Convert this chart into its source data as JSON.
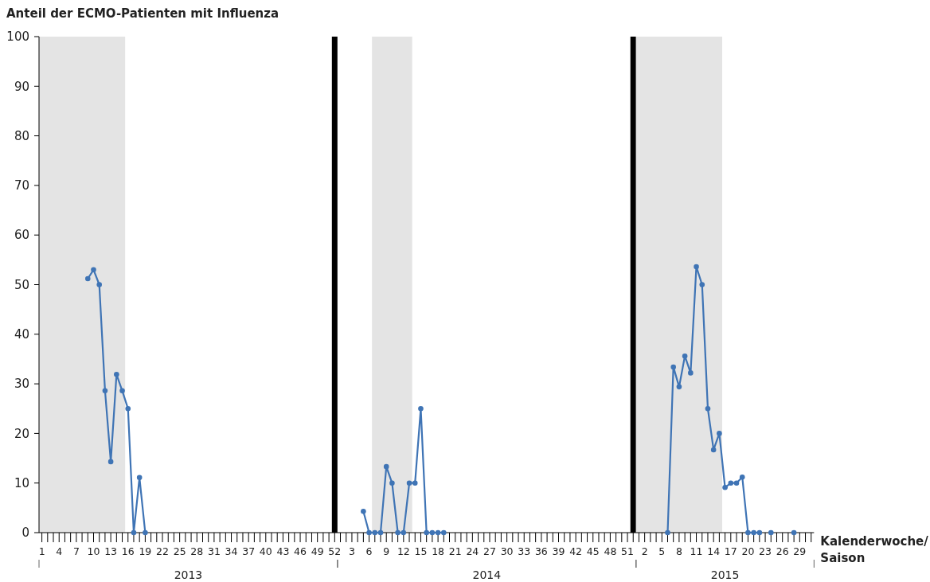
{
  "chart_data": [
    {
      "type": "line",
      "ylabel": "Anteil der ECMO-Patienten mit Influenza",
      "xlabel": "2013",
      "xlim": [
        0.5,
        52.5
      ],
      "ylim": [
        0,
        100
      ],
      "yticks": [
        0,
        10,
        20,
        30,
        40,
        50,
        60,
        70,
        80,
        90,
        100
      ],
      "xticks": [
        1,
        {
          "value": 2,
          "label": null
        },
        {
          "value": 3,
          "label": null
        },
        4,
        {
          "value": 5,
          "label": null
        },
        {
          "value": 6,
          "label": null
        },
        7,
        {
          "value": 8,
          "label": null
        },
        {
          "value": 9,
          "label": null
        },
        10,
        {
          "value": 11,
          "label": null
        },
        {
          "value": 12,
          "label": null
        },
        13,
        {
          "value": 14,
          "label": null
        },
        {
          "value": 15,
          "label": null
        },
        16,
        {
          "value": 17,
          "label": null
        },
        {
          "value": 18,
          "label": null
        },
        19,
        {
          "value": 20,
          "label": null
        },
        {
          "value": 21,
          "label": null
        },
        22,
        {
          "value": 23,
          "label": null
        },
        {
          "value": 24,
          "label": null
        },
        25,
        {
          "value": 26,
          "label": null
        },
        {
          "value": 27,
          "label": null
        },
        28,
        {
          "value": 29,
          "label": null
        },
        {
          "value": 30,
          "label": null
        },
        31,
        {
          "value": 32,
          "label": null
        },
        {
          "value": 33,
          "label": null
        },
        34,
        {
          "value": 35,
          "label": null
        },
        {
          "value": 36,
          "label": null
        },
        37,
        {
          "value": 38,
          "label": null
        },
        {
          "value": 39,
          "label": null
        },
        40,
        {
          "value": 41,
          "label": null
        },
        {
          "value": 42,
          "label": null
        },
        43,
        {
          "value": 44,
          "label": null
        },
        {
          "value": 45,
          "label": null
        },
        46,
        {
          "value": 47,
          "label": null
        },
        {
          "value": 48,
          "label": null
        },
        49,
        {
          "value": 50,
          "label": null
        },
        {
          "value": 51,
          "label": null
        },
        52
      ],
      "series": [
        {
          "color": "#3f74b5",
          "x": [
            9,
            10,
            11,
            12,
            13,
            14,
            15,
            16,
            17,
            18,
            19
          ],
          "values": [
            51.2,
            53,
            50,
            28.6,
            14.3,
            31.9,
            28.6,
            25,
            0,
            11.1,
            0
          ]
        }
      ],
      "marker": "circle",
      "bands": [
        {
          "axis": "x",
          "from": 0.5,
          "to": 15.5,
          "color": "#e4e4e4"
        }
      ],
      "ref_lines": [
        {
          "axis": "x",
          "value": 52,
          "color": "#000000"
        }
      ]
    },
    {
      "type": "line",
      "xlabel": "2014",
      "xlim": [
        0.5,
        52.5
      ],
      "ylim": [
        0,
        100
      ],
      "tick_labels": "x",
      "xticks": [
        {
          "value": 1,
          "label": null
        },
        {
          "value": 2,
          "label": null
        },
        3,
        {
          "value": 4,
          "label": null
        },
        {
          "value": 5,
          "label": null
        },
        6,
        {
          "value": 7,
          "label": null
        },
        {
          "value": 8,
          "label": null
        },
        9,
        {
          "value": 10,
          "label": null
        },
        {
          "value": 11,
          "label": null
        },
        12,
        {
          "value": 13,
          "label": null
        },
        {
          "value": 14,
          "label": null
        },
        15,
        {
          "value": 16,
          "label": null
        },
        {
          "value": 17,
          "label": null
        },
        18,
        {
          "value": 19,
          "label": null
        },
        {
          "value": 20,
          "label": null
        },
        21,
        {
          "value": 22,
          "label": null
        },
        {
          "value": 23,
          "label": null
        },
        24,
        {
          "value": 25,
          "label": null
        },
        {
          "value": 26,
          "label": null
        },
        27,
        {
          "value": 28,
          "label": null
        },
        {
          "value": 29,
          "label": null
        },
        30,
        {
          "value": 31,
          "label": null
        },
        {
          "value": 32,
          "label": null
        },
        33,
        {
          "value": 34,
          "label": null
        },
        {
          "value": 35,
          "label": null
        },
        36,
        {
          "value": 37,
          "label": null
        },
        {
          "value": 38,
          "label": null
        },
        39,
        {
          "value": 40,
          "label": null
        },
        {
          "value": 41,
          "label": null
        },
        42,
        {
          "value": 43,
          "label": null
        },
        {
          "value": 44,
          "label": null
        },
        45,
        {
          "value": 46,
          "label": null
        },
        {
          "value": 47,
          "label": null
        },
        48,
        {
          "value": 49,
          "label": null
        },
        {
          "value": 50,
          "label": null
        },
        51,
        {
          "value": 52,
          "label": null
        }
      ],
      "series": [
        {
          "color": "#3f74b5",
          "x": [
            5,
            6,
            7,
            8,
            9,
            10,
            11,
            12,
            13,
            14,
            15,
            16,
            17,
            18,
            19
          ],
          "values": [
            4.3,
            0,
            0,
            0,
            13.3,
            10,
            0,
            0,
            10,
            10,
            25,
            0,
            0,
            0,
            0
          ]
        }
      ],
      "marker": "circle",
      "bands": [
        {
          "axis": "x",
          "from": 6.5,
          "to": 13.5,
          "color": "#e4e4e4"
        }
      ],
      "ref_lines": [
        {
          "axis": "x",
          "value": 52,
          "color": "#000000"
        }
      ]
    },
    {
      "type": "line",
      "xlabel": "2015",
      "xlim": [
        0.5,
        31.5
      ],
      "ylim": [
        0,
        100
      ],
      "tick_labels": "x",
      "xticks": [
        {
          "value": 1,
          "label": null
        },
        2,
        {
          "value": 3,
          "label": null
        },
        {
          "value": 4,
          "label": null
        },
        5,
        {
          "value": 6,
          "label": null
        },
        {
          "value": 7,
          "label": null
        },
        8,
        {
          "value": 9,
          "label": null
        },
        {
          "value": 10,
          "label": null
        },
        11,
        {
          "value": 12,
          "label": null
        },
        {
          "value": 13,
          "label": null
        },
        14,
        {
          "value": 15,
          "label": null
        },
        {
          "value": 16,
          "label": null
        },
        17,
        {
          "value": 18,
          "label": null
        },
        {
          "value": 19,
          "label": null
        },
        20,
        {
          "value": 21,
          "label": null
        },
        {
          "value": 22,
          "label": null
        },
        23,
        {
          "value": 24,
          "label": null
        },
        {
          "value": 25,
          "label": null
        },
        26,
        {
          "value": 27,
          "label": null
        },
        {
          "value": 28,
          "label": null
        },
        29,
        {
          "value": 30,
          "label": null
        },
        {
          "value": 31,
          "label": null
        }
      ],
      "series": [
        {
          "color": "#3f74b5",
          "x": [
            6,
            7,
            8,
            9,
            10,
            11,
            12,
            13,
            14,
            15,
            16,
            17,
            18,
            19,
            20,
            21,
            22,
            23,
            24,
            25,
            28
          ],
          "values": [
            0,
            33.4,
            29.4,
            35.6,
            32.2,
            53.6,
            50,
            25,
            16.7,
            20,
            9.1,
            10,
            10,
            11.2,
            0,
            0,
            0,
            null,
            0,
            null,
            0
          ]
        }
      ],
      "marker": "circle",
      "bands": [
        {
          "axis": "x",
          "from": 0.5,
          "to": 15.5,
          "color": "#e4e4e4"
        }
      ],
      "annotations": [
        "Kalenderwoche/ Saison"
      ]
    }
  ]
}
